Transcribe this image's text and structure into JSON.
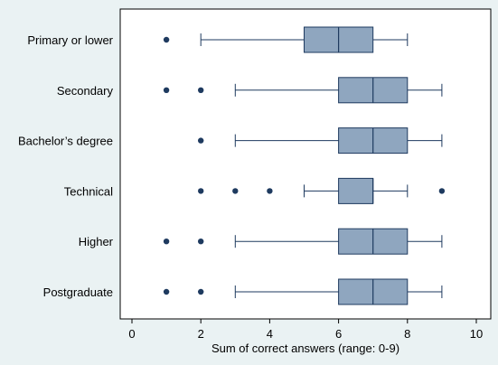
{
  "chart_data": {
    "type": "boxplot",
    "orientation": "horizontal",
    "xlabel": "Sum of correct answers (range: 0-9)",
    "xlim": [
      0,
      10
    ],
    "x_ticks": [
      0,
      2,
      4,
      6,
      8,
      10
    ],
    "x_tick_labels": [
      "0",
      "2",
      "4",
      "6",
      "8",
      "10"
    ],
    "grid": false,
    "colors": {
      "background": "#eaf2f3",
      "plot_area": "#ffffff",
      "box_fill": "#8fa6bf",
      "box_stroke": "#1e3a5f",
      "outlier": "#1e3a5f"
    },
    "groups": [
      {
        "label": "Primary or lower",
        "whisker_low": 2,
        "q1": 5,
        "median": 6,
        "q3": 7,
        "whisker_high": 8,
        "outliers": [
          1
        ]
      },
      {
        "label": "Secondary",
        "whisker_low": 3,
        "q1": 6,
        "median": 7,
        "q3": 8,
        "whisker_high": 9,
        "outliers": [
          1,
          2
        ]
      },
      {
        "label": "Bachelor’s degree",
        "whisker_low": 3,
        "q1": 6,
        "median": 7,
        "q3": 8,
        "whisker_high": 9,
        "outliers": [
          2
        ]
      },
      {
        "label": "Technical",
        "whisker_low": 5,
        "q1": 6,
        "median": 7,
        "q3": 7,
        "whisker_high": 8,
        "outliers": [
          2,
          3,
          4,
          9
        ]
      },
      {
        "label": "Higher",
        "whisker_low": 3,
        "q1": 6,
        "median": 7,
        "q3": 8,
        "whisker_high": 9,
        "outliers": [
          1,
          2
        ]
      },
      {
        "label": "Postgraduate",
        "whisker_low": 3,
        "q1": 6,
        "median": 7,
        "q3": 8,
        "whisker_high": 9,
        "outliers": [
          1,
          2
        ]
      }
    ]
  }
}
